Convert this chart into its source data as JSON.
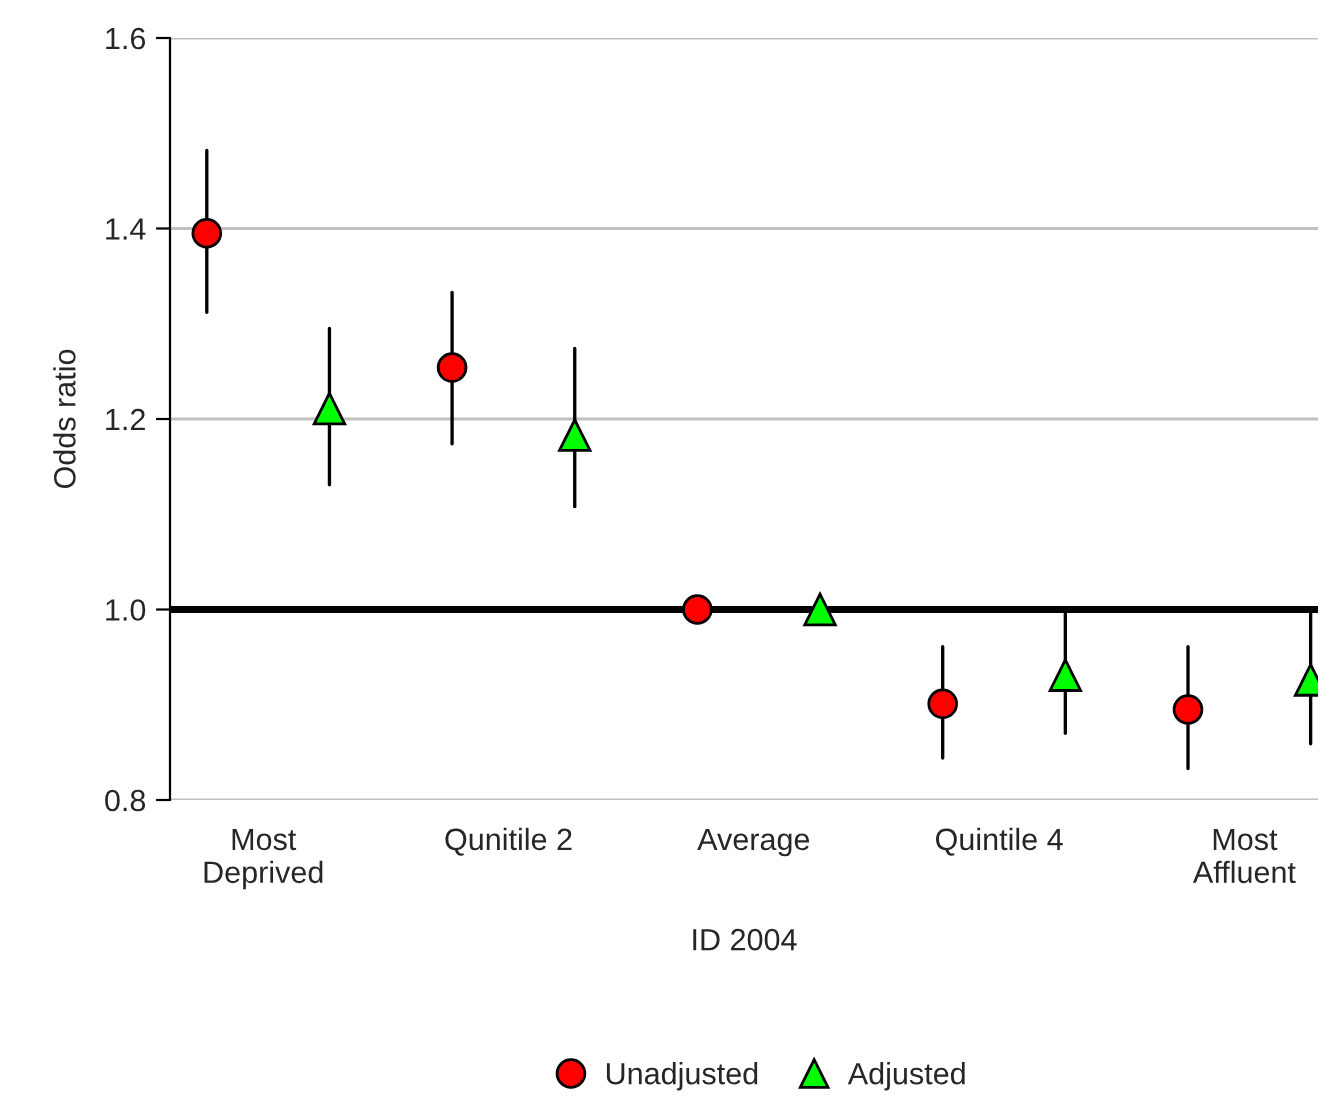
{
  "chart_data": {
    "type": "scatter",
    "xlabel": "ID 2004",
    "ylabel": "Odds ratio",
    "categories": [
      "Most\nDeprived",
      "Qunitile 2",
      "Average",
      "Quintile 4",
      "Most\nAffluent"
    ],
    "series": [
      {
        "name": "Unadjusted",
        "color": "#ff0000",
        "marker": "circle",
        "values": [
          1.395,
          1.254,
          1.0,
          0.901,
          0.895
        ],
        "errors": [
          [
            1.312,
            1.482
          ],
          [
            1.174,
            1.333
          ],
          null,
          [
            0.844,
            0.961
          ],
          [
            0.833,
            0.961
          ]
        ]
      },
      {
        "name": "Adjusted",
        "color": "#00ff00",
        "marker": "triangle",
        "values": [
          1.211,
          1.183,
          1.0,
          0.931,
          0.926
        ],
        "errors": [
          [
            1.131,
            1.295
          ],
          [
            1.108,
            1.274
          ],
          null,
          [
            0.87,
            1.0
          ],
          [
            0.859,
            1.002
          ]
        ]
      }
    ],
    "ylim": [
      0.8,
      1.6
    ],
    "yticks": [
      {
        "value": 0.8,
        "label": "0.8"
      },
      {
        "value": 1.0,
        "label": "1.0"
      },
      {
        "value": 1.2,
        "label": "1.2"
      },
      {
        "value": 1.4,
        "label": "1.4"
      },
      {
        "value": 1.6,
        "label": "1.6"
      }
    ],
    "ref_lines": [
      {
        "axis": "y",
        "value": 1.0,
        "color": "#000000"
      }
    ],
    "grid": "y",
    "legend": "bottom"
  }
}
